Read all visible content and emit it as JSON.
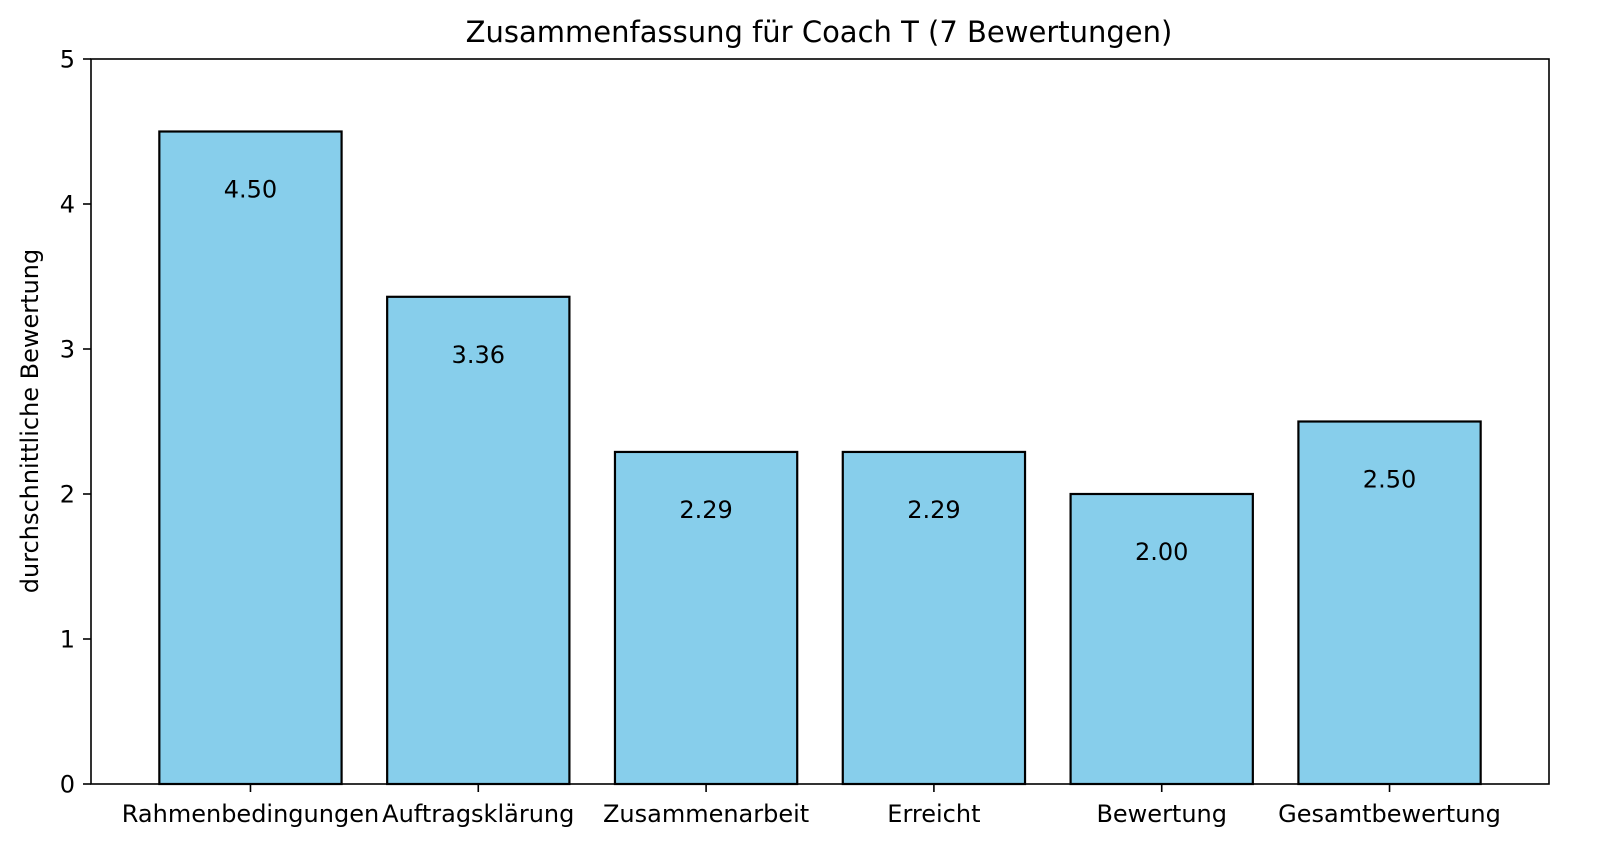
{
  "chart_data": {
    "type": "bar",
    "title": "Zusammenfassung für Coach T (7 Bewertungen)",
    "xlabel": "",
    "ylabel": "durchschnittliche Bewertung",
    "categories": [
      "Rahmenbedingungen",
      "Auftragsklärung",
      "Zusammenarbeit",
      "Erreicht",
      "Bewertung",
      "Gesamtbewertung"
    ],
    "values": [
      4.5,
      3.36,
      2.29,
      2.29,
      2.0,
      2.5
    ],
    "value_labels": [
      "4.50",
      "3.36",
      "2.29",
      "2.29",
      "2.00",
      "2.50"
    ],
    "ylim": [
      0,
      5
    ],
    "yticks": [
      0,
      1,
      2,
      3,
      4,
      5
    ],
    "ytick_labels": [
      "0",
      "1",
      "2",
      "3",
      "4",
      "5"
    ],
    "grid": false,
    "colors": {
      "bar_fill": "#87CEEB",
      "bar_edge": "#000000"
    }
  }
}
